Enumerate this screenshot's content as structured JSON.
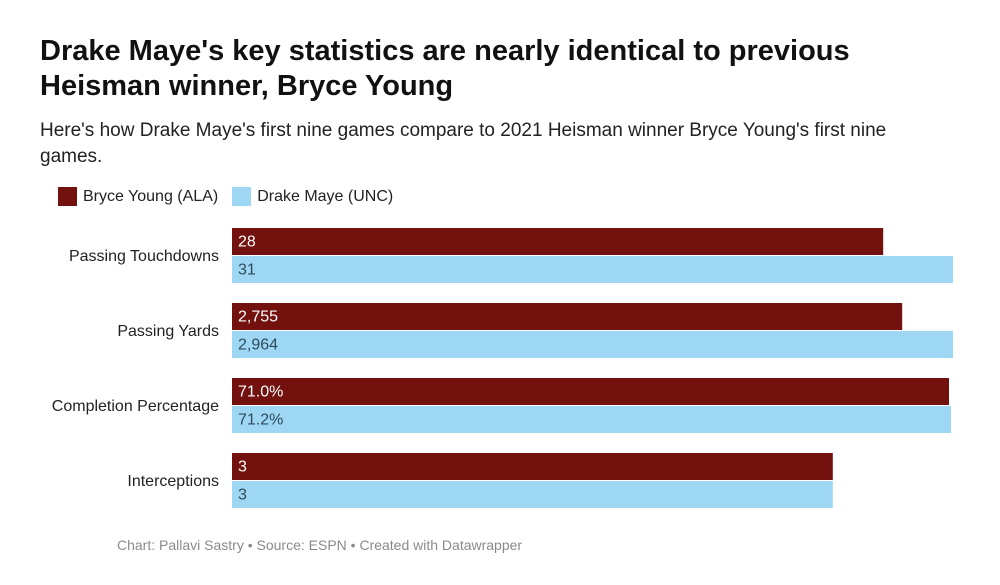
{
  "title": "Drake Maye's key statistics are nearly identical to previous Heisman winner, Bryce Young",
  "subtitle": "Here's how Drake Maye's first nine games compare to 2021 Heisman winner Bryce Young's first nine games.",
  "footer": "Chart: Pallavi Sastry • Source: ESPN • Created with Datawrapper",
  "colors": {
    "bryce": "#72110e",
    "drake": "#9dd7f3"
  },
  "chart_data": {
    "type": "bar",
    "orientation": "horizontal",
    "legend_position": "top-left",
    "categories": [
      "Passing Touchdowns",
      "Passing Yards",
      "Completion Percentage",
      "Interceptions"
    ],
    "series": [
      {
        "name": "Bryce Young (ALA)",
        "values": [
          28,
          2755,
          71.0,
          3
        ],
        "labels": [
          "28",
          "2,755",
          "71.0%",
          "3"
        ]
      },
      {
        "name": "Drake Maye (UNC)",
        "values": [
          31,
          2964,
          71.2,
          3
        ],
        "labels": [
          "31",
          "2,964",
          "71.2%",
          "3"
        ]
      }
    ],
    "category_max": [
      31,
      2964,
      71.4,
      3.6
    ]
  }
}
